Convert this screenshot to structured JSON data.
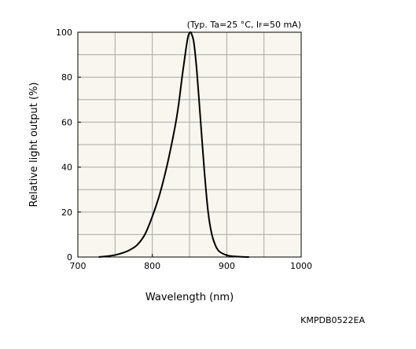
{
  "chart_data": {
    "type": "line",
    "title": "",
    "condition_prefix": "(Typ. Ta=25 °C, I",
    "condition_subscript": "F",
    "condition_suffix": "=50 mA)",
    "xlabel": "Wavelength (nm)",
    "ylabel": "Relative light output (%)",
    "xlim": [
      700,
      1000
    ],
    "ylim": [
      0,
      100
    ],
    "x_ticks": [
      700,
      800,
      900,
      1000
    ],
    "y_ticks": [
      0,
      20,
      40,
      60,
      80,
      100
    ],
    "x_minor_step": 50,
    "y_minor_step": 10,
    "grid": true,
    "colors": {
      "plot_background": "#f8f6ee",
      "grid": "#a8a8a8",
      "curve": "#000000"
    },
    "series": [
      {
        "x": [
          728,
          740,
          750,
          760,
          770,
          780,
          790,
          800,
          810,
          820,
          830,
          835,
          840,
          845,
          848,
          851,
          853,
          856,
          860,
          865,
          870,
          875,
          880,
          885,
          890,
          900,
          910,
          920,
          930
        ],
        "y": [
          0,
          0.4,
          0.9,
          1.8,
          3.2,
          5.5,
          10,
          18,
          28,
          41,
          57,
          67,
          80,
          92,
          98,
          100,
          99,
          95,
          82,
          60,
          38,
          20,
          10,
          5,
          2.5,
          0.8,
          0.3,
          0.1,
          0
        ]
      }
    ]
  },
  "figure_code": "KMPDB0522EA"
}
